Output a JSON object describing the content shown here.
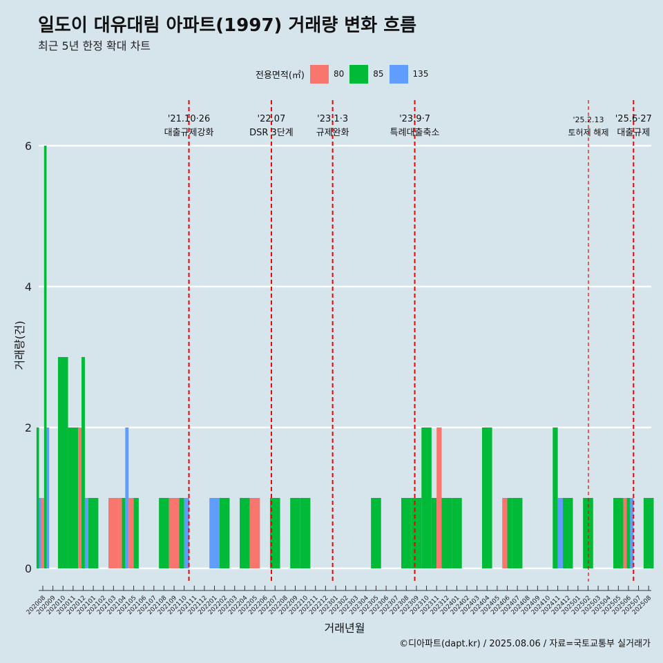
{
  "title": "일도이 대유대림 아파트(1997) 거래량 변화 흐름",
  "subtitle": "최근 5년 한정 확대 차트",
  "legend": {
    "title": "전용면적(㎡)",
    "items": [
      {
        "label": "80",
        "color": "#f8766d"
      },
      {
        "label": "85",
        "color": "#00ba38"
      },
      {
        "label": "135",
        "color": "#619cff"
      }
    ]
  },
  "caption": "©디아파트(dapt.kr) / 2025.08.06 / 자료=국토교통부 실거래가",
  "chart_data": {
    "type": "bar",
    "xlabel": "거래년월",
    "ylabel": "거래량(건)",
    "ylim": [
      0,
      6
    ],
    "yticks": [
      0,
      2,
      4,
      6
    ],
    "grid": true,
    "legend_position": "top",
    "categories": [
      "202008",
      "202009",
      "202010",
      "202011",
      "202012",
      "202101",
      "202102",
      "202103",
      "202104",
      "202105",
      "202106",
      "202107",
      "202108",
      "202109",
      "202110",
      "202111",
      "202112",
      "202201",
      "202202",
      "202203",
      "202204",
      "202205",
      "202206",
      "202207",
      "202208",
      "202209",
      "202210",
      "202211",
      "202212",
      "202301",
      "202302",
      "202303",
      "202304",
      "202305",
      "202306",
      "202307",
      "202308",
      "202309",
      "202310",
      "202311",
      "202312",
      "202401",
      "202402",
      "202403",
      "202404",
      "202405",
      "202406",
      "202407",
      "202408",
      "202409",
      "202410",
      "202411",
      "202412",
      "202501",
      "202502",
      "202503",
      "202504",
      "202505",
      "202506",
      "202507",
      "202508"
    ],
    "bars": [
      {
        "period": "202008",
        "segments": [
          {
            "size": "85",
            "value": 2
          },
          {
            "size": "135",
            "value": 1
          },
          {
            "size": "80",
            "value": 1
          },
          {
            "size": "85",
            "value": 6
          },
          {
            "size": "135",
            "value": 2
          }
        ]
      },
      {
        "period": "202010",
        "segments": [
          {
            "size": "85",
            "value": 3
          }
        ]
      },
      {
        "period": "202011",
        "segments": [
          {
            "size": "85",
            "value": 2
          }
        ]
      },
      {
        "period": "202012",
        "segments": [
          {
            "size": "80",
            "value": 2
          },
          {
            "size": "85",
            "value": 3
          },
          {
            "size": "135",
            "value": 1
          }
        ]
      },
      {
        "period": "202101",
        "segments": [
          {
            "size": "85",
            "value": 1
          }
        ]
      },
      {
        "period": "202103",
        "segments": [
          {
            "size": "80",
            "value": 1
          }
        ]
      },
      {
        "period": "202104",
        "segments": [
          {
            "size": "80",
            "value": 1
          },
          {
            "size": "85",
            "value": 1
          },
          {
            "size": "135",
            "value": 2
          }
        ]
      },
      {
        "period": "202105",
        "segments": [
          {
            "size": "80",
            "value": 1
          },
          {
            "size": "85",
            "value": 1
          }
        ]
      },
      {
        "period": "202108",
        "segments": [
          {
            "size": "85",
            "value": 1
          }
        ]
      },
      {
        "period": "202109",
        "segments": [
          {
            "size": "80",
            "value": 1
          }
        ]
      },
      {
        "period": "202110",
        "segments": [
          {
            "size": "85",
            "value": 1
          },
          {
            "size": "135",
            "value": 1
          }
        ]
      },
      {
        "period": "202201",
        "segments": [
          {
            "size": "135",
            "value": 1
          }
        ]
      },
      {
        "period": "202202",
        "segments": [
          {
            "size": "85",
            "value": 1
          }
        ]
      },
      {
        "period": "202204",
        "segments": [
          {
            "size": "85",
            "value": 1
          }
        ]
      },
      {
        "period": "202205",
        "segments": [
          {
            "size": "80",
            "value": 1
          }
        ]
      },
      {
        "period": "202207",
        "segments": [
          {
            "size": "85",
            "value": 1
          }
        ]
      },
      {
        "period": "202209",
        "segments": [
          {
            "size": "85",
            "value": 1
          }
        ]
      },
      {
        "period": "202210",
        "segments": [
          {
            "size": "85",
            "value": 1
          }
        ]
      },
      {
        "period": "202305",
        "segments": [
          {
            "size": "85",
            "value": 1
          }
        ]
      },
      {
        "period": "202308",
        "segments": [
          {
            "size": "85",
            "value": 1
          }
        ]
      },
      {
        "period": "202309",
        "segments": [
          {
            "size": "85",
            "value": 1
          }
        ]
      },
      {
        "period": "202310",
        "segments": [
          {
            "size": "85",
            "value": 2
          }
        ]
      },
      {
        "period": "202311",
        "segments": [
          {
            "size": "85",
            "value": 1
          },
          {
            "size": "80",
            "value": 2
          }
        ]
      },
      {
        "period": "202312",
        "segments": [
          {
            "size": "85",
            "value": 1
          }
        ]
      },
      {
        "period": "202401",
        "segments": [
          {
            "size": "85",
            "value": 1
          }
        ]
      },
      {
        "period": "202404",
        "segments": [
          {
            "size": "85",
            "value": 2
          }
        ]
      },
      {
        "period": "202406",
        "segments": [
          {
            "size": "80",
            "value": 1
          },
          {
            "size": "85",
            "value": 1
          }
        ]
      },
      {
        "period": "202407",
        "segments": [
          {
            "size": "85",
            "value": 1
          }
        ]
      },
      {
        "period": "202411",
        "segments": [
          {
            "size": "85",
            "value": 2
          },
          {
            "size": "135",
            "value": 1
          }
        ]
      },
      {
        "period": "202412",
        "segments": [
          {
            "size": "85",
            "value": 1
          }
        ]
      },
      {
        "period": "202502",
        "segments": [
          {
            "size": "85",
            "value": 1
          }
        ]
      },
      {
        "period": "202505",
        "segments": [
          {
            "size": "85",
            "value": 1
          }
        ]
      },
      {
        "period": "202506",
        "segments": [
          {
            "size": "80",
            "value": 1
          },
          {
            "size": "85",
            "value": 1
          },
          {
            "size": "135",
            "value": 1
          }
        ]
      },
      {
        "period": "202508",
        "segments": [
          {
            "size": "85",
            "value": 1
          }
        ]
      }
    ],
    "annotations": [
      {
        "date": "2021-10-26",
        "line1": "'21.10·26",
        "line2": "대출규제강화",
        "style": "thick"
      },
      {
        "date": "2022-07-01",
        "line1": "'22.07",
        "line2": "DSR 3단계",
        "style": "thick"
      },
      {
        "date": "2023-01-03",
        "line1": "'23.1·3",
        "line2": "규제완화",
        "style": "thick"
      },
      {
        "date": "2023-09-07",
        "line1": "'23.9·7",
        "line2": "특례대출축소",
        "style": "thick"
      },
      {
        "date": "2025-02-13",
        "line1": "'25.2.13",
        "line2": "토허제 해제",
        "style": "thin"
      },
      {
        "date": "2025-06-27",
        "line1": "'25.6·27",
        "line2": "대출규제",
        "style": "thick"
      }
    ]
  }
}
